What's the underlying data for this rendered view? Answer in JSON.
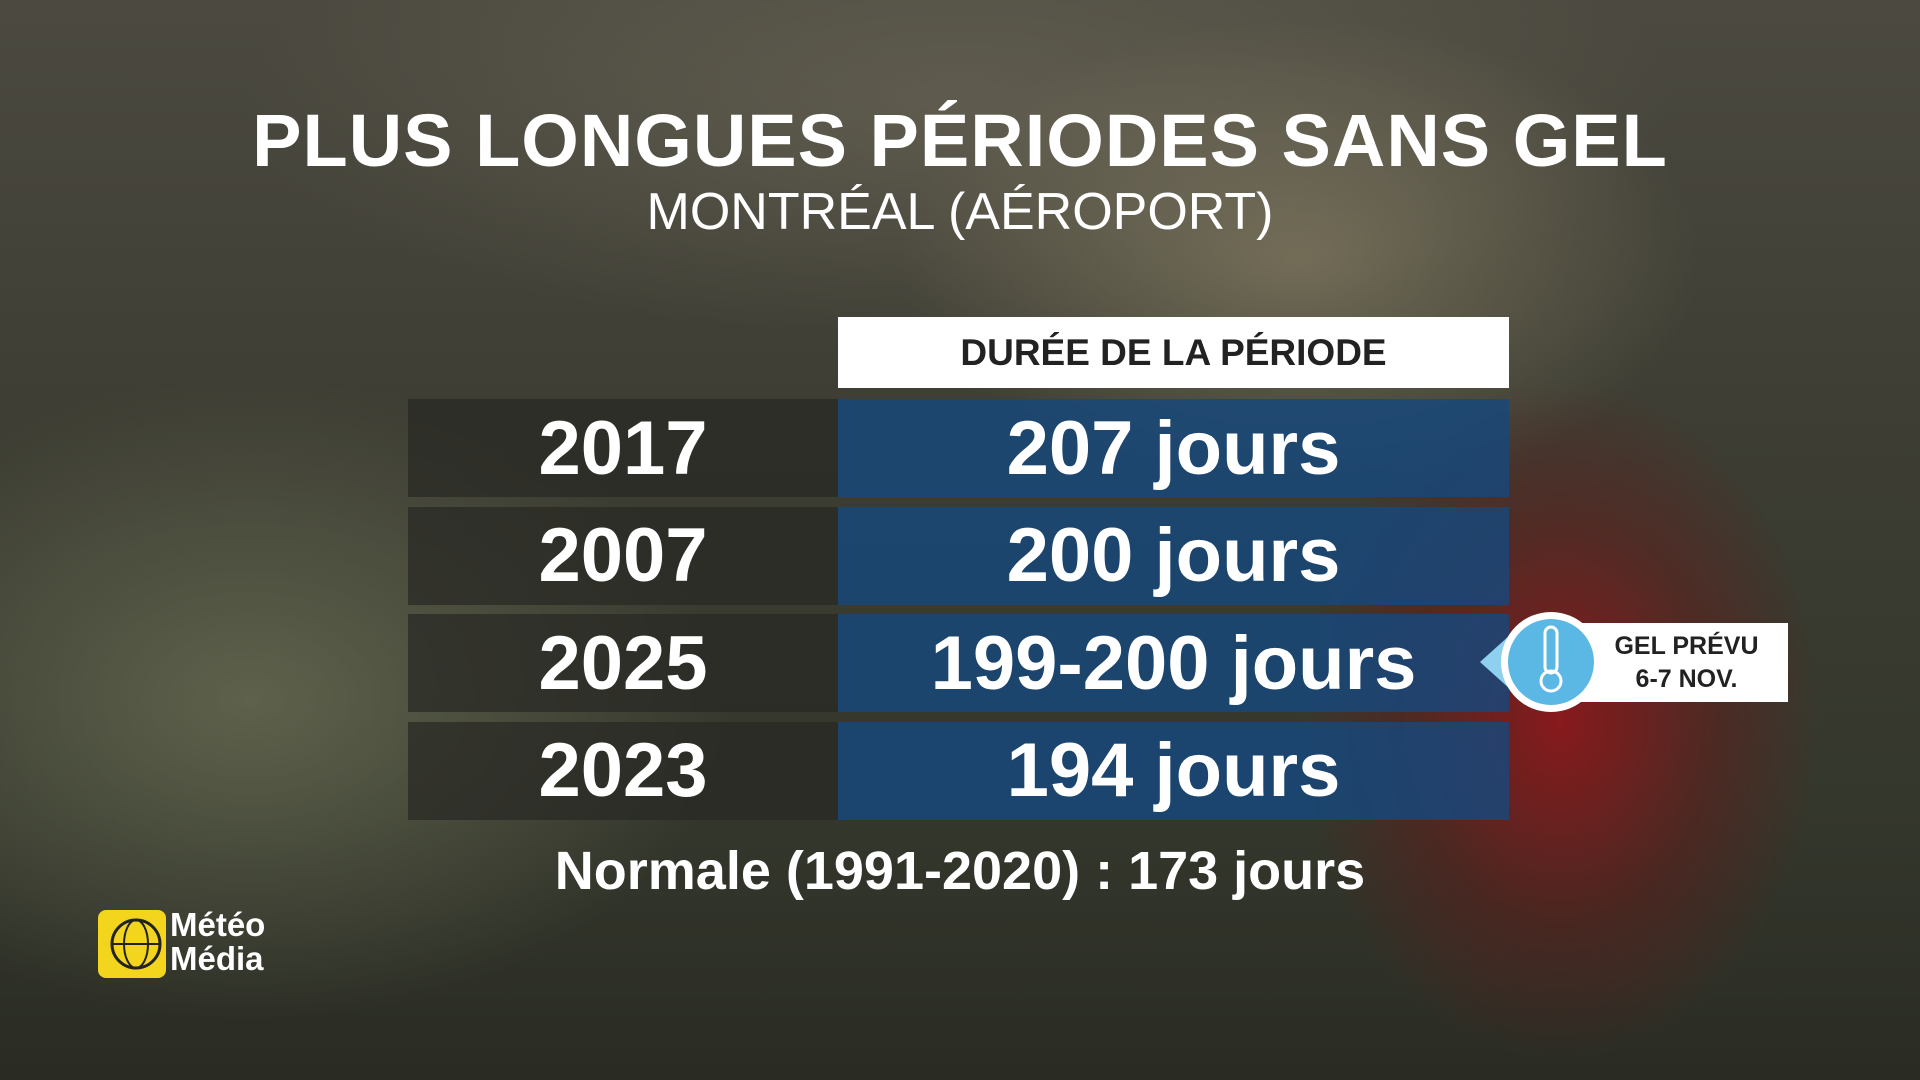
{
  "header": {
    "title": "PLUS LONGUES PÉRIODES SANS GEL",
    "subtitle": "MONTRÉAL (AÉROPORT)"
  },
  "table": {
    "column_header": "DURÉE DE LA PÉRIODE",
    "rows": [
      [
        "2017",
        "207 jours"
      ],
      [
        "2007",
        "200 jours"
      ],
      [
        "2025",
        "199-200 jours"
      ],
      [
        "2023",
        "194 jours"
      ]
    ]
  },
  "footnote": "Normale (1991-2020) : 173 jours",
  "callout": {
    "lines": [
      "GEL PRÉVU",
      "6-7 NOV."
    ]
  },
  "logo": {
    "lines": [
      "Météo",
      "Média"
    ]
  }
}
